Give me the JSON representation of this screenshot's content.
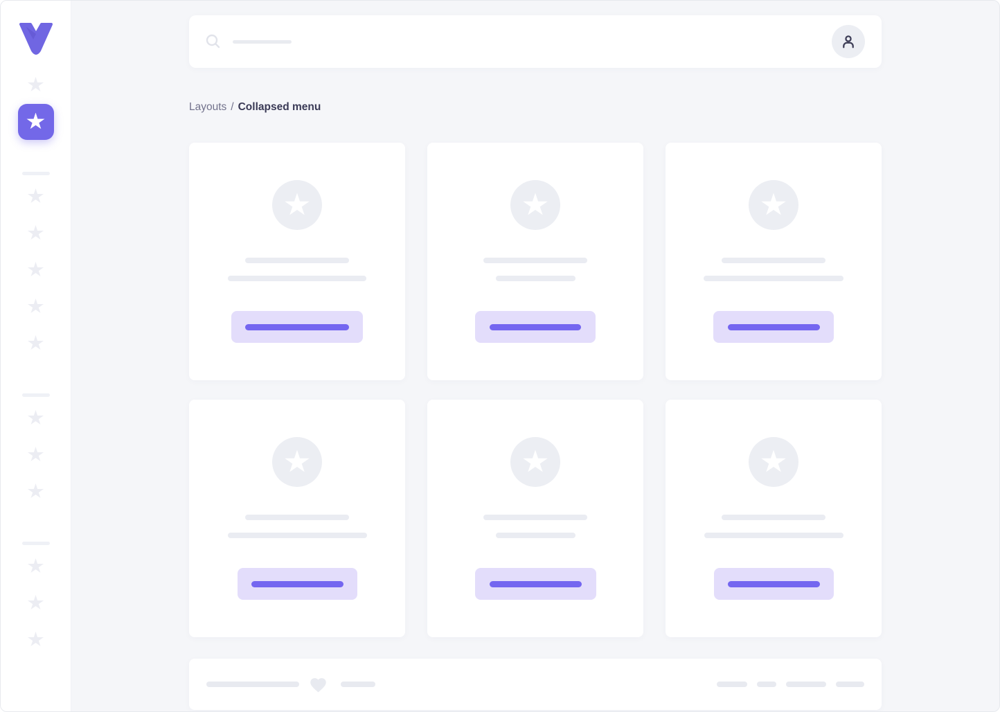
{
  "breadcrumb": {
    "parent": "Layouts",
    "separator": "/",
    "current": "Collapsed menu"
  },
  "colors": {
    "accent": "#7368e8",
    "logo_purple": "#7066e2",
    "logo_fold": "#5e52cc",
    "button_bg": "#e3ddfb",
    "button_line": "#7466f0",
    "skeleton_gray": "#eaecf2",
    "sidebar_star_gray": "#ecedf3",
    "footer_gray": "#e8eaf0",
    "page_bg": "#f5f6f9",
    "user_icon": "#3e3e57"
  },
  "icons": {
    "logo": "vuesax-v-logo",
    "search": "magnifier",
    "profile": "user-outline",
    "menu_item": "star",
    "favorite": "heart"
  },
  "topbar": {
    "search_value": "",
    "search_placeholder_width": 85
  },
  "sidebar": {
    "groups": [
      {
        "items": [
          {
            "active": false
          },
          {
            "active": true
          }
        ]
      },
      {
        "items": [
          {
            "active": false
          },
          {
            "active": false
          },
          {
            "active": false
          },
          {
            "active": false
          },
          {
            "active": false
          }
        ]
      },
      {
        "items": [
          {
            "active": false
          },
          {
            "active": false
          },
          {
            "active": false
          }
        ]
      },
      {
        "items": [
          {
            "active": false
          },
          {
            "active": false
          },
          {
            "active": false
          }
        ]
      }
    ]
  },
  "cards": [
    {
      "line1_w": 150,
      "line2_w": 200,
      "button_w": 190,
      "button_line_w": 150
    },
    {
      "line1_w": 150,
      "line2_w": 115,
      "button_w": 174,
      "button_line_w": 132
    },
    {
      "line1_w": 150,
      "line2_w": 202,
      "button_w": 174,
      "button_line_w": 133
    },
    {
      "line1_w": 150,
      "line2_w": 201,
      "button_w": 173,
      "button_line_w": 133
    },
    {
      "line1_w": 150,
      "line2_w": 115,
      "button_w": 175,
      "button_line_w": 133
    },
    {
      "line1_w": 150,
      "line2_w": 201,
      "button_w": 173,
      "button_line_w": 133
    }
  ],
  "footer": {
    "left_line_w": 134,
    "mid_line_w": 50,
    "right_pills": [
      44,
      28,
      58,
      41
    ]
  }
}
